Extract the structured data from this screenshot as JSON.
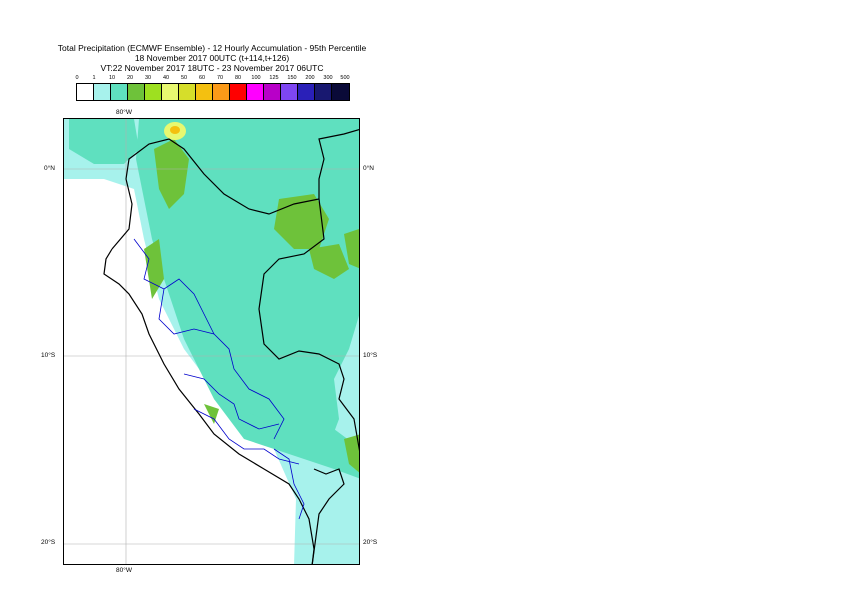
{
  "title": {
    "line1": "Total Precipitation (ECMWF Ensemble) - 12 Hourly Accumulation - 95th Percentile",
    "line2": "18 November 2017 00UTC (t+114,t+126)",
    "line3": "VT:22 November 2017 18UTC - 23 November 2017 06UTC"
  },
  "legend": {
    "labels": [
      "0",
      "1",
      "10",
      "20",
      "30",
      "40",
      "50",
      "60",
      "70",
      "80",
      "100",
      "125",
      "150",
      "200",
      "300",
      "500"
    ],
    "colors": [
      "#ffffff",
      "#a7f2ec",
      "#5fe0bf",
      "#6ec23a",
      "#9ee020",
      "#e8f870",
      "#d6de2a",
      "#f4c010",
      "#fb9a18",
      "#ff0000",
      "#ff00ff",
      "#b800c8",
      "#7e46f2",
      "#2a20b8",
      "#181870",
      "#0a0a38"
    ]
  },
  "map": {
    "lat_labels": {
      "eq_left": "0°N",
      "eq_right": "0°N",
      "s10_left": "10°S",
      "s10_right": "10°S",
      "s20_left": "20°S",
      "s20_right": "20°S"
    },
    "lon_labels": {
      "top": "80°W",
      "bottom": "80°W"
    },
    "colors": {
      "light_cyan": "#a7f2ec",
      "teal": "#5fe0bf",
      "green": "#6ec23a",
      "lime": "#9ee020",
      "yellow": "#e8f870",
      "orange": "#f4c010",
      "border": "#000000",
      "admin": "#0000cc",
      "grid": "#b0b0b0"
    }
  }
}
